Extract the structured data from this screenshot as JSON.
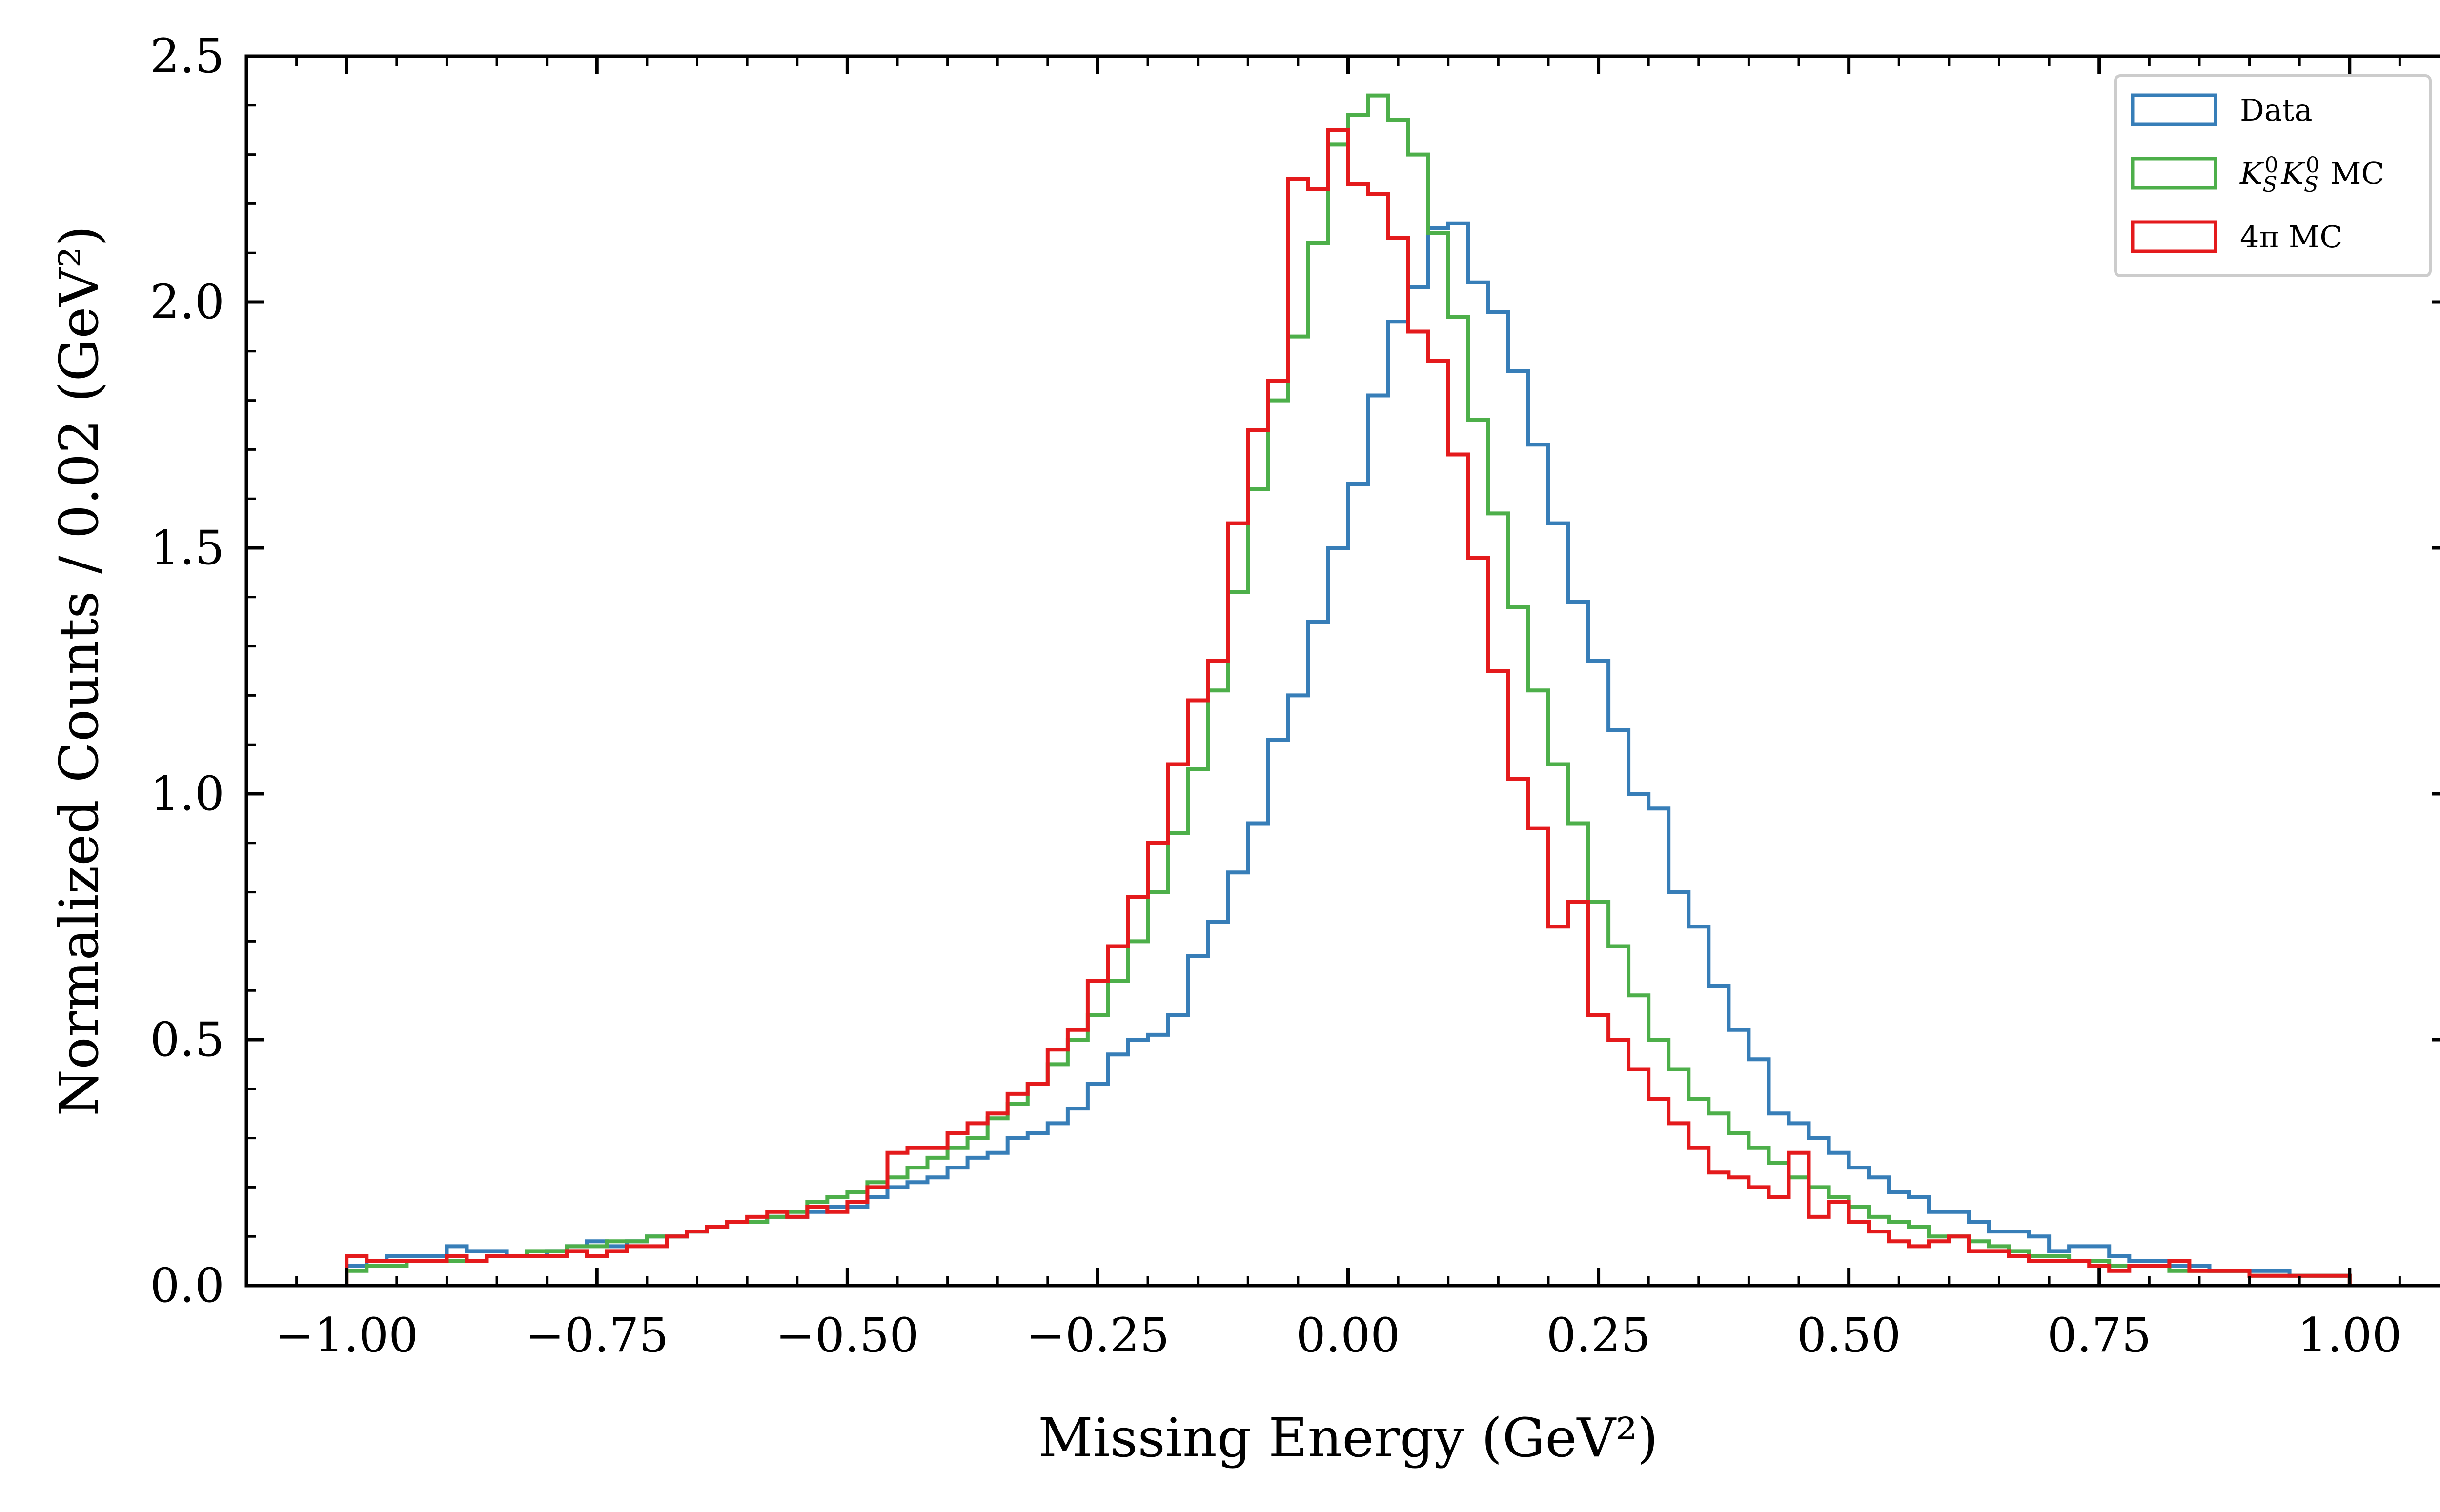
{
  "colors": {
    "data": "#377eb8",
    "kskk": "#4daf4a",
    "fourpi": "#e41a1c",
    "frame": "#000000",
    "legend_border": "#cccccc"
  },
  "chart_data": {
    "type": "histogram-step",
    "title": "",
    "xlabel": "Missing Energy (GeV²)",
    "ylabel": "Normalized Counts / 0.02 (GeV²)",
    "xlim": [
      -1.1,
      1.1
    ],
    "ylim": [
      0,
      2.5
    ],
    "xticks": [
      -1.0,
      -0.75,
      -0.5,
      -0.25,
      0.0,
      0.25,
      0.5,
      0.75,
      1.0
    ],
    "xtick_labels": [
      "−1.00",
      "−0.75",
      "−0.50",
      "−0.25",
      "0.00",
      "0.25",
      "0.50",
      "0.75",
      "1.00"
    ],
    "yticks": [
      0.0,
      0.5,
      1.0,
      1.5,
      2.0,
      2.5
    ],
    "ytick_labels": [
      "0.0",
      "0.5",
      "1.0",
      "1.5",
      "2.0",
      "2.5"
    ],
    "bin_width": 0.02,
    "bin_start": -1.0,
    "legend_position": "top-right",
    "grid": false,
    "series": [
      {
        "name": "Data",
        "color": "#377eb8",
        "values": [
          0.04,
          0.05,
          0.06,
          0.06,
          0.06,
          0.08,
          0.07,
          0.07,
          0.06,
          0.06,
          0.07,
          0.08,
          0.09,
          0.08,
          0.09,
          0.1,
          0.1,
          0.11,
          0.12,
          0.13,
          0.13,
          0.14,
          0.14,
          0.15,
          0.16,
          0.16,
          0.18,
          0.2,
          0.21,
          0.22,
          0.24,
          0.26,
          0.27,
          0.3,
          0.31,
          0.33,
          0.36,
          0.41,
          0.47,
          0.5,
          0.51,
          0.55,
          0.67,
          0.74,
          0.84,
          0.94,
          1.11,
          1.2,
          1.35,
          1.5,
          1.63,
          1.81,
          1.96,
          2.03,
          2.15,
          2.16,
          2.04,
          1.98,
          1.86,
          1.71,
          1.55,
          1.39,
          1.27,
          1.13,
          1.0,
          0.97,
          0.8,
          0.73,
          0.61,
          0.52,
          0.46,
          0.35,
          0.33,
          0.3,
          0.27,
          0.24,
          0.22,
          0.19,
          0.18,
          0.15,
          0.15,
          0.13,
          0.11,
          0.11,
          0.1,
          0.07,
          0.08,
          0.08,
          0.06,
          0.05,
          0.05,
          0.04,
          0.04,
          0.03,
          0.03,
          0.03,
          0.03,
          0.02,
          0.02,
          0.02
        ]
      },
      {
        "name": "K_S^0 K_S^0 MC",
        "color": "#4daf4a",
        "values": [
          0.03,
          0.04,
          0.04,
          0.05,
          0.05,
          0.05,
          0.05,
          0.06,
          0.06,
          0.07,
          0.07,
          0.08,
          0.08,
          0.09,
          0.09,
          0.1,
          0.1,
          0.11,
          0.12,
          0.13,
          0.13,
          0.14,
          0.15,
          0.17,
          0.18,
          0.19,
          0.21,
          0.22,
          0.24,
          0.26,
          0.28,
          0.3,
          0.34,
          0.37,
          0.41,
          0.45,
          0.5,
          0.55,
          0.62,
          0.7,
          0.8,
          0.92,
          1.05,
          1.21,
          1.41,
          1.62,
          1.8,
          1.93,
          2.12,
          2.32,
          2.38,
          2.42,
          2.37,
          2.3,
          2.14,
          1.97,
          1.76,
          1.57,
          1.38,
          1.21,
          1.06,
          0.94,
          0.78,
          0.69,
          0.59,
          0.5,
          0.44,
          0.38,
          0.35,
          0.31,
          0.28,
          0.25,
          0.22,
          0.2,
          0.18,
          0.16,
          0.14,
          0.13,
          0.12,
          0.1,
          0.1,
          0.09,
          0.08,
          0.07,
          0.06,
          0.06,
          0.05,
          0.05,
          0.04,
          0.04,
          0.04,
          0.03,
          0.03,
          0.03,
          0.03,
          0.02,
          0.02,
          0.02,
          0.02,
          0.02
        ]
      },
      {
        "name": "4π MC",
        "color": "#e41a1c",
        "values": [
          0.06,
          0.05,
          0.05,
          0.05,
          0.05,
          0.06,
          0.05,
          0.06,
          0.06,
          0.06,
          0.06,
          0.07,
          0.06,
          0.07,
          0.08,
          0.08,
          0.1,
          0.11,
          0.12,
          0.13,
          0.14,
          0.15,
          0.14,
          0.16,
          0.15,
          0.17,
          0.2,
          0.27,
          0.28,
          0.28,
          0.31,
          0.33,
          0.35,
          0.39,
          0.41,
          0.48,
          0.52,
          0.62,
          0.69,
          0.79,
          0.9,
          1.06,
          1.19,
          1.27,
          1.55,
          1.74,
          1.84,
          2.25,
          2.23,
          2.35,
          2.24,
          2.22,
          2.13,
          1.94,
          1.88,
          1.69,
          1.48,
          1.25,
          1.03,
          0.93,
          0.73,
          0.78,
          0.55,
          0.5,
          0.44,
          0.38,
          0.33,
          0.28,
          0.23,
          0.22,
          0.2,
          0.18,
          0.27,
          0.14,
          0.17,
          0.13,
          0.11,
          0.09,
          0.08,
          0.09,
          0.1,
          0.07,
          0.07,
          0.06,
          0.05,
          0.05,
          0.05,
          0.04,
          0.03,
          0.04,
          0.04,
          0.05,
          0.03,
          0.03,
          0.03,
          0.02,
          0.02,
          0.02,
          0.02,
          0.02
        ]
      }
    ]
  },
  "legend": {
    "items": [
      {
        "label": "Data",
        "color": "#377eb8"
      },
      {
        "label_main": "K",
        "label_sub": "S",
        "label_sup": "0",
        "label_suffix": "MC",
        "color": "#4daf4a"
      },
      {
        "label": "4π MC",
        "color": "#e41a1c"
      }
    ]
  }
}
